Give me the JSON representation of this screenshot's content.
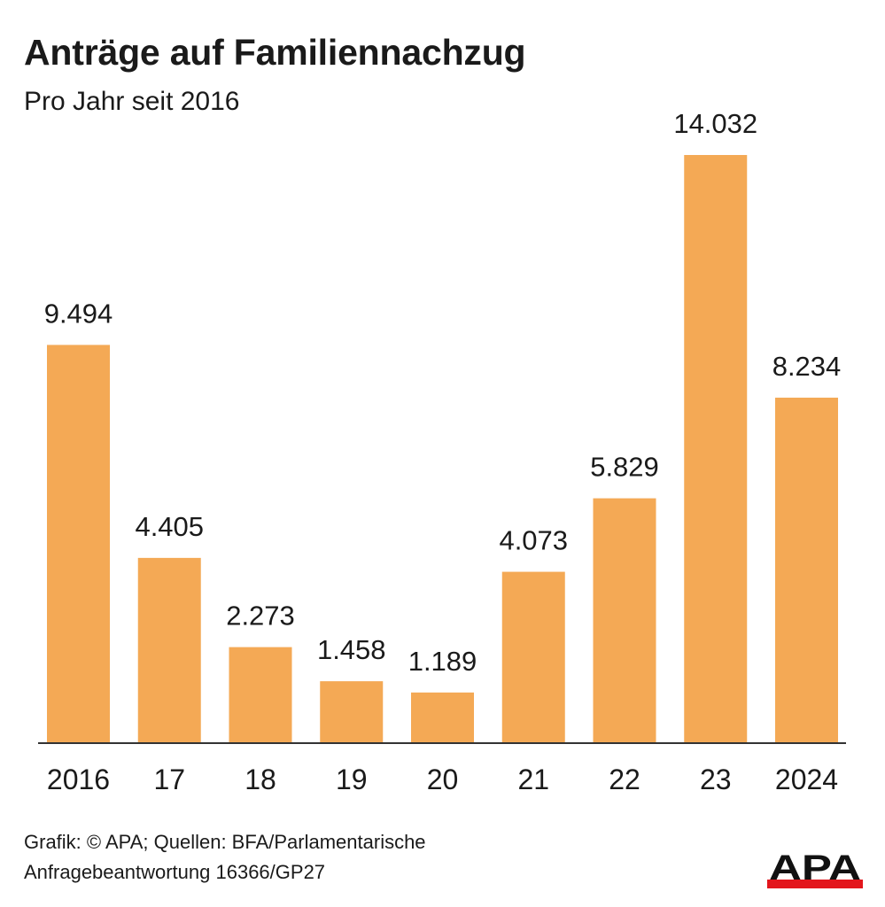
{
  "chart_data": {
    "type": "bar",
    "title": "Anträge auf Familiennachzug",
    "subtitle": "Pro Jahr seit 2016",
    "categories": [
      "2016",
      "17",
      "18",
      "19",
      "20",
      "21",
      "22",
      "23",
      "2024"
    ],
    "values": [
      9494,
      4405,
      2273,
      1458,
      1189,
      4073,
      5829,
      14032,
      8234
    ],
    "value_labels": [
      "9.494",
      "4.405",
      "2.273",
      "1.458",
      "1.189",
      "4.073",
      "5.829",
      "14.032",
      "8.234"
    ],
    "xlabel": "",
    "ylabel": "",
    "ylim": [
      0,
      14032
    ],
    "grid": false,
    "bar_color": "#F4A955"
  },
  "footer": {
    "line1": "Grafik: © APA; Quellen: BFA/Parlamentarische",
    "line2": "Anfragebeantwortung 16366/GP27"
  },
  "logo": {
    "text": "APA",
    "bar_color": "#E3161C"
  }
}
